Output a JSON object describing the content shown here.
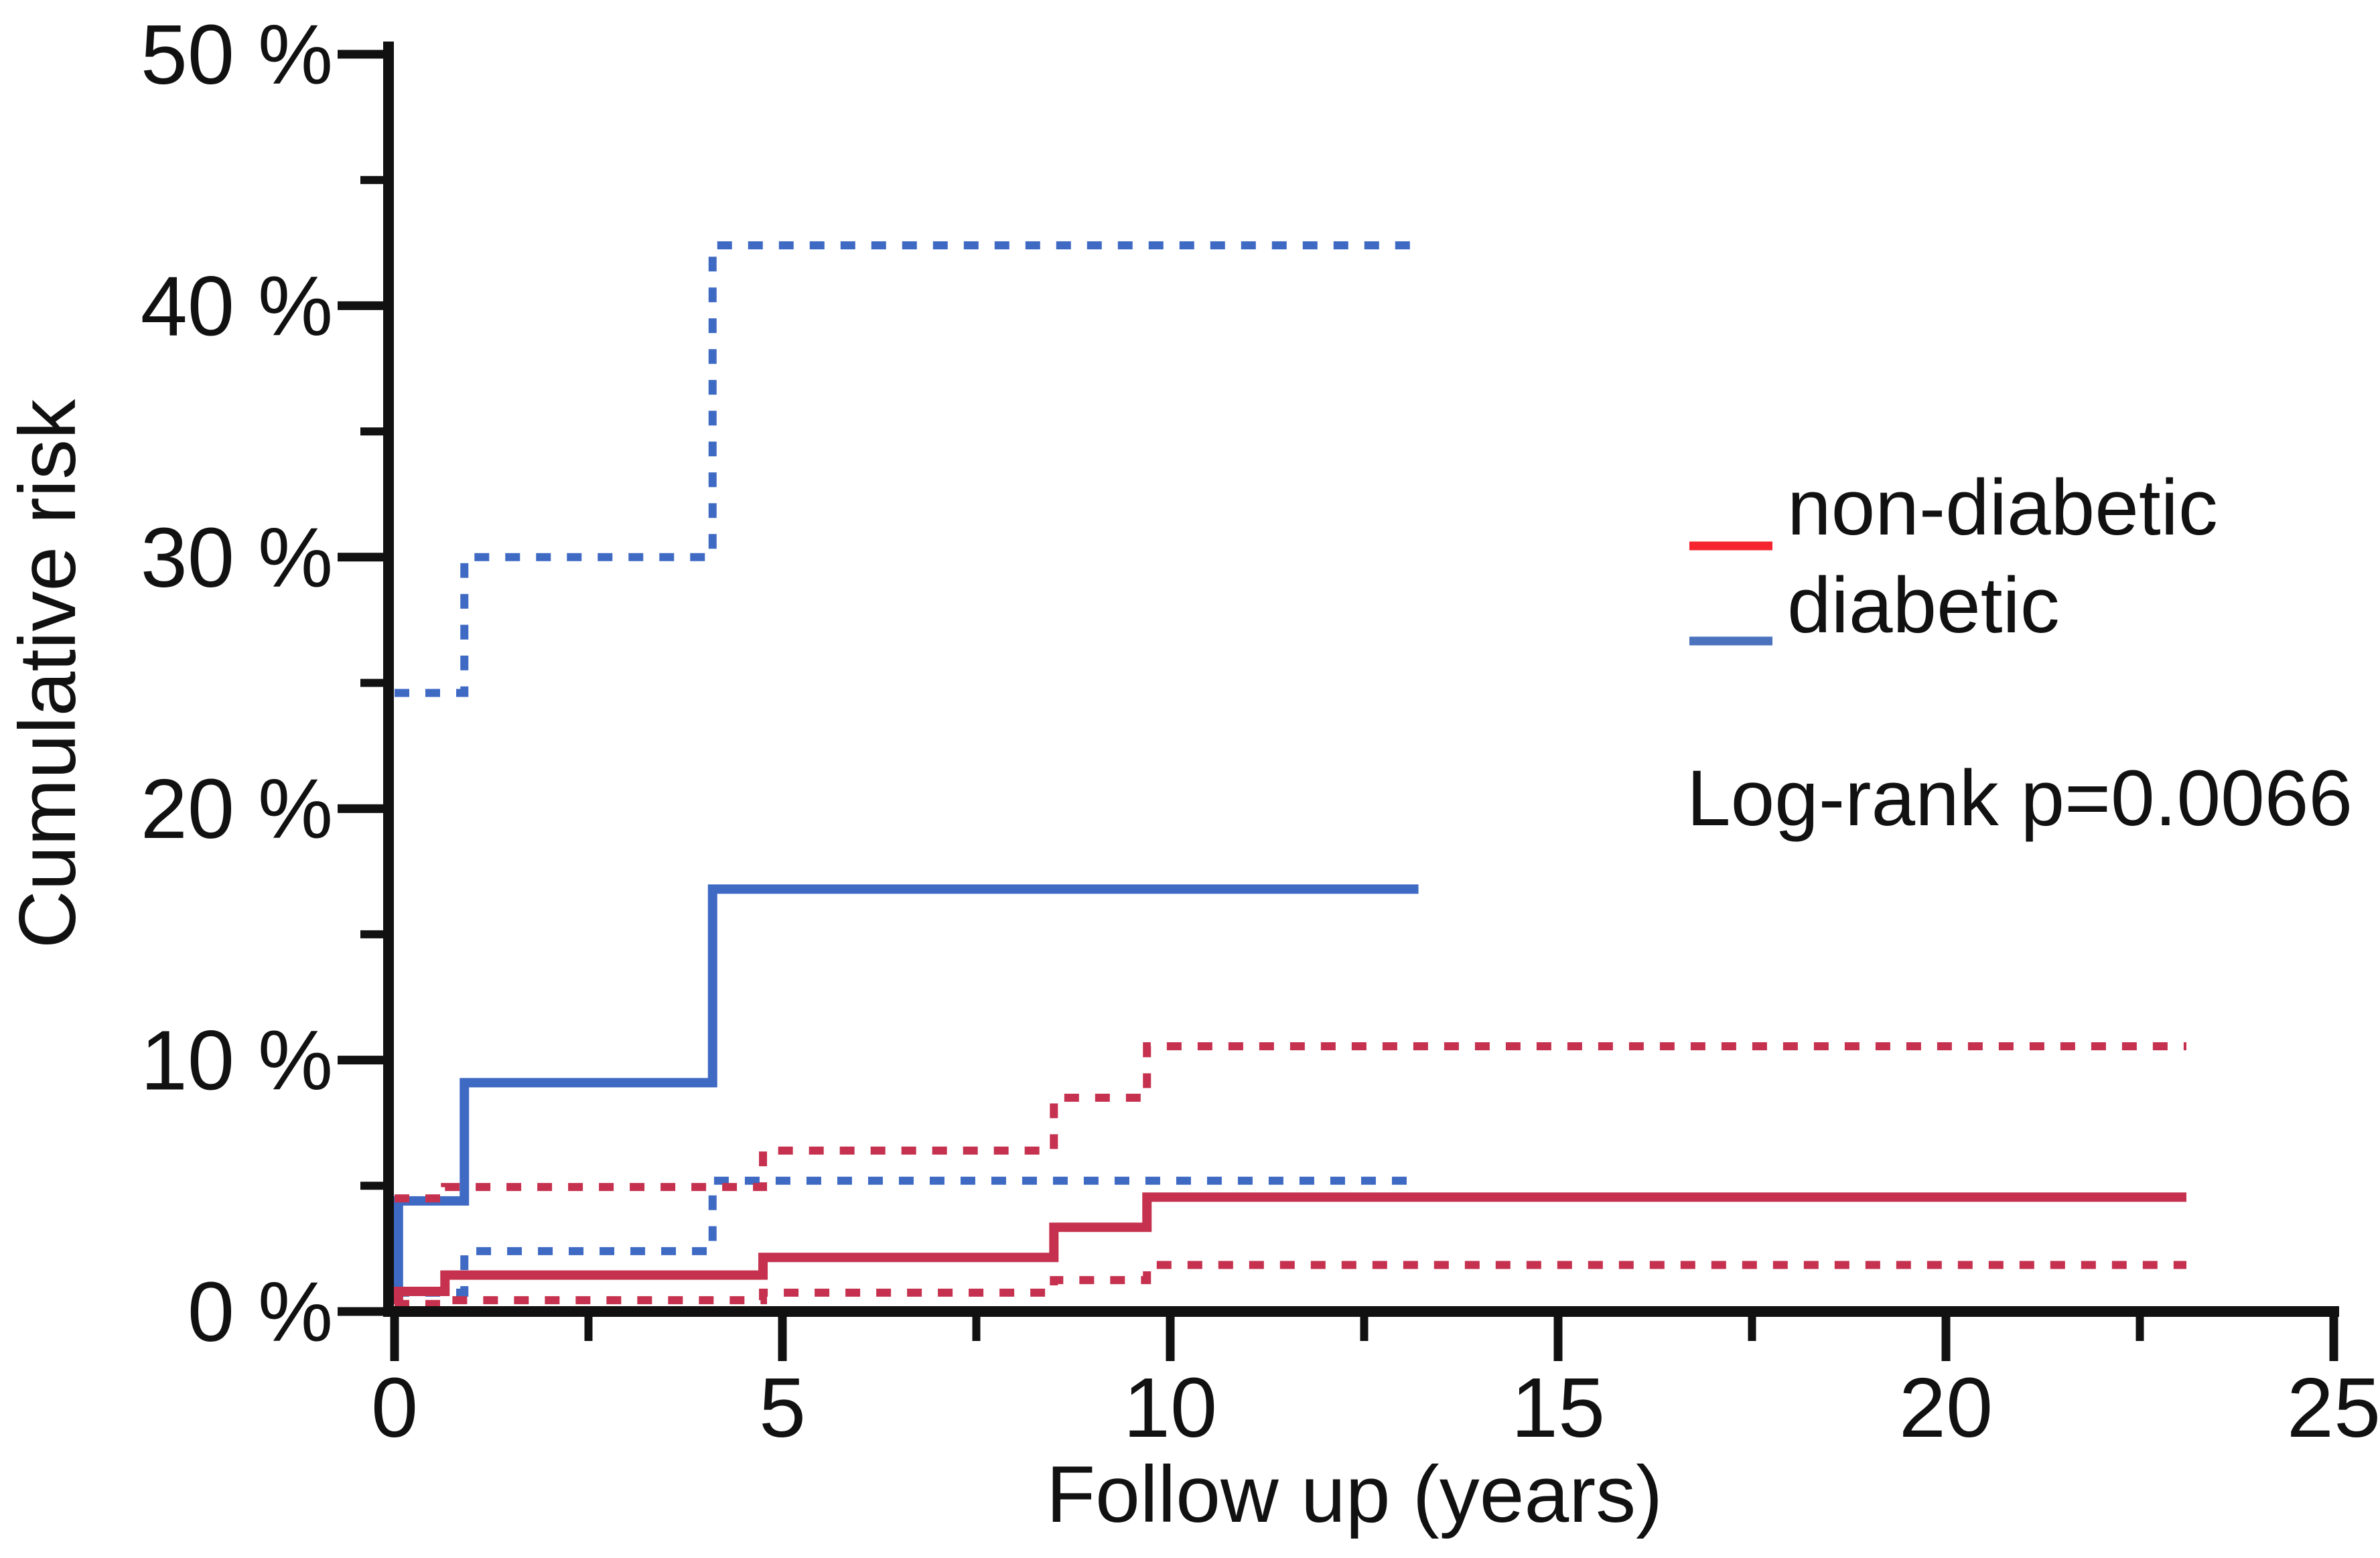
{
  "figure": {
    "background": "#ffffff"
  },
  "y_axis": {
    "title": "Cumulative risk",
    "tick_labels": [
      "0 %",
      "10 %",
      "20 %",
      "30 %",
      "40 %",
      "50 %"
    ],
    "tick_values": [
      0,
      10,
      20,
      30,
      40,
      50
    ],
    "minor_tick_values": [
      5,
      15,
      25,
      35,
      45
    ],
    "range": [
      0,
      50
    ]
  },
  "x_axis": {
    "title": "Follow up (years)",
    "tick_labels": [
      "0",
      "5",
      "10",
      "15",
      "20",
      "25"
    ],
    "tick_values": [
      0,
      5,
      10,
      15,
      20,
      25
    ],
    "minor_tick_values": [
      2.5,
      7.5,
      12.5,
      17.5,
      22.5
    ],
    "range": [
      0,
      25
    ]
  },
  "legend": {
    "entries": [
      {
        "label": "non-diabetic",
        "color": "#f5242e"
      },
      {
        "label": "diabetic",
        "color": "#4a72bd"
      }
    ]
  },
  "annotation": {
    "text": "Log-rank p=0.0066"
  },
  "chart_data": {
    "type": "line",
    "subtype": "kaplan-meier-cumulative-incidence-step",
    "title": "",
    "xlabel": "Follow up (years)",
    "ylabel": "Cumulative risk",
    "xlim": [
      0,
      25
    ],
    "ylim_percent": [
      0,
      50
    ],
    "grid": false,
    "legend_position": "right",
    "colors": {
      "non_diabetic": "#c5314e",
      "diabetic": "#3f6ac4"
    },
    "series": [
      {
        "name": "diabetic",
        "role": "estimate",
        "style": "solid",
        "color": "#3f6ac4",
        "steps": [
          [
            0,
            0.4
          ],
          [
            0.05,
            4.4
          ],
          [
            0.9,
            9.1
          ],
          [
            4.1,
            16.8
          ]
        ],
        "end_x": 13.2
      },
      {
        "name": "diabetic-upper-ci",
        "role": "confidence-upper",
        "style": "dashed",
        "color": "#3f6ac4",
        "steps": [
          [
            0,
            24.6
          ],
          [
            0.9,
            30.0
          ],
          [
            4.1,
            42.4
          ]
        ],
        "end_x": 13.2
      },
      {
        "name": "diabetic-lower-ci",
        "role": "confidence-lower",
        "style": "dashed",
        "color": "#3f6ac4",
        "steps": [
          [
            0,
            0.75
          ],
          [
            0.9,
            2.4
          ],
          [
            4.1,
            5.2
          ]
        ],
        "end_x": 13.2
      },
      {
        "name": "non-diabetic",
        "role": "estimate",
        "style": "solid",
        "color": "#c5314e",
        "steps": [
          [
            0,
            0.3
          ],
          [
            0.05,
            0.8
          ],
          [
            0.65,
            1.45
          ],
          [
            4.75,
            2.15
          ],
          [
            8.5,
            3.35
          ],
          [
            9.7,
            4.55
          ]
        ],
        "end_x": 23.1
      },
      {
        "name": "non-diabetic-upper-ci",
        "role": "confidence-upper",
        "style": "dashed",
        "color": "#c5314e",
        "steps": [
          [
            0,
            4.5
          ],
          [
            0.65,
            4.95
          ],
          [
            4.75,
            6.4
          ],
          [
            8.5,
            8.5
          ],
          [
            9.7,
            10.55
          ]
        ],
        "end_x": 23.1
      },
      {
        "name": "non-diabetic-lower-ci",
        "role": "confidence-lower",
        "style": "dashed",
        "color": "#c5314e",
        "steps": [
          [
            0,
            0.3
          ],
          [
            0.65,
            0.45
          ],
          [
            4.75,
            0.75
          ],
          [
            8.5,
            1.25
          ],
          [
            9.7,
            1.85
          ]
        ],
        "end_x": 23.1
      }
    ]
  }
}
